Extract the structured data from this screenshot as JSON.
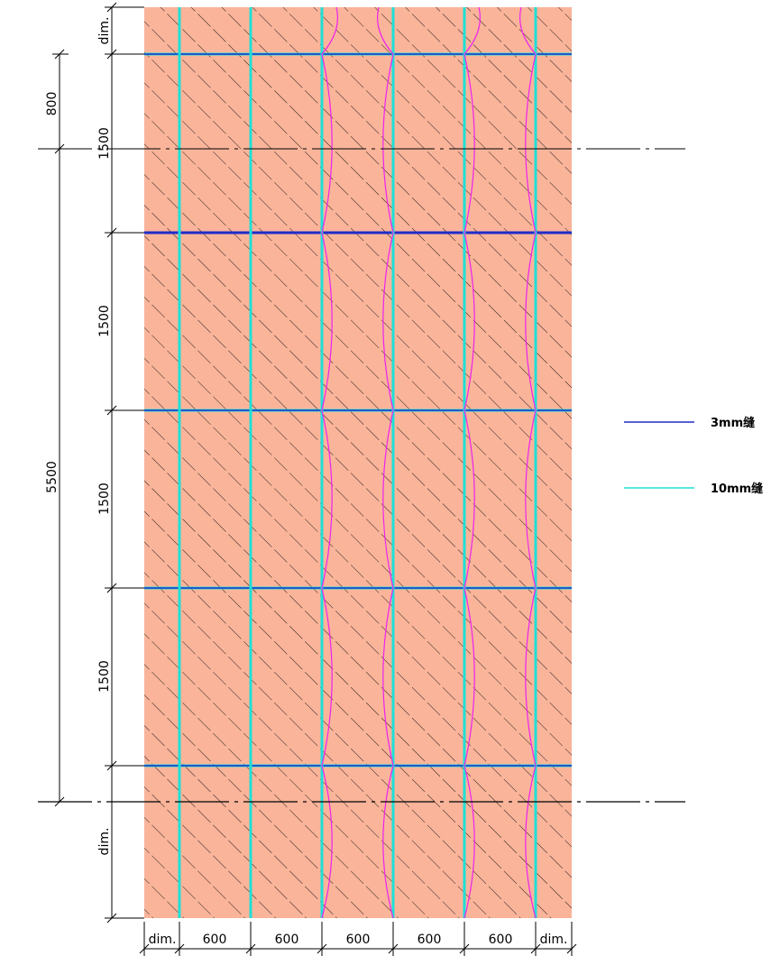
{
  "colors": {
    "panel_fill": "#f9b49a",
    "hatch": "#2b1e1a",
    "joint_3mm": "#1f2cc9",
    "joint_10mm": "#1fe0d6",
    "curve": "#ee22ee",
    "dimension": "#000000",
    "centerline": "#000000"
  },
  "left_dimensions": {
    "outer": [
      {
        "label": "800"
      },
      {
        "label": "5500"
      }
    ],
    "inner": [
      {
        "label": "dim."
      },
      {
        "label": "1500"
      },
      {
        "label": "1500"
      },
      {
        "label": "1500"
      },
      {
        "label": "1500"
      },
      {
        "label": "dim."
      }
    ]
  },
  "bottom_dimensions": [
    {
      "label": "dim."
    },
    {
      "label": "600"
    },
    {
      "label": "600"
    },
    {
      "label": "600"
    },
    {
      "label": "600"
    },
    {
      "label": "600"
    },
    {
      "label": "dim."
    }
  ],
  "legend": {
    "items": [
      {
        "label": "3mm缝",
        "color_key": "joint_3mm"
      },
      {
        "label": "10mm缝",
        "color_key": "joint_10mm"
      }
    ]
  }
}
